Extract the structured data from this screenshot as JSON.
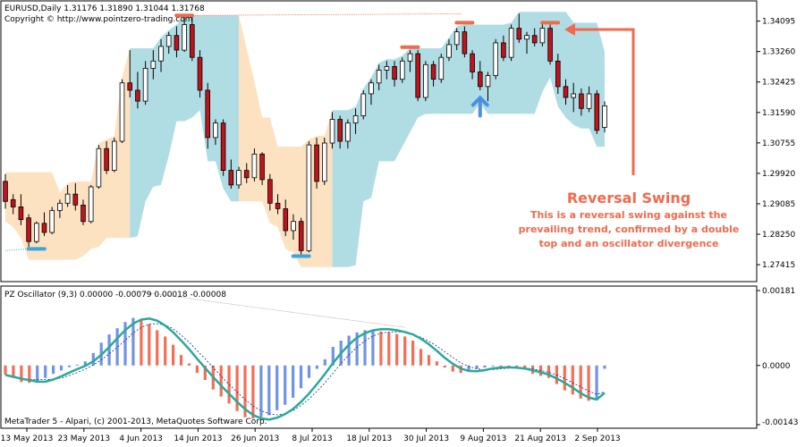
{
  "main_panel": {
    "header_line1": "EURUSD,Daily  1.31176 1.31890 1.31044 1.31768",
    "header_line2": "Copyright © http://www.pointzero-trading.com",
    "price_ticks": [
      "1.34095",
      "1.33260",
      "1.32425",
      "1.31590",
      "1.30755",
      "1.29920",
      "1.29085",
      "1.28250",
      "1.27415"
    ]
  },
  "osc_panel": {
    "header": "PZ Oscillator (9,3) 0.00000 -0.00079 0.00018 -0.00008",
    "ticks": [
      "0.00181",
      "0.0000",
      "-0.00143"
    ],
    "footer": "MetaTrader 5 - Alpari, (c) 2001-2013, MetaQuotes Software Corp."
  },
  "date_ticks": [
    "13 May 2013",
    "23 May 2013",
    "4 Jun 2013",
    "14 Jun 2013",
    "26 Jun 2013",
    "8 Jul 2013",
    "18 Jul 2013",
    "30 Jul 2013",
    "9 Aug 2013",
    "21 Aug 2013",
    "2 Sep 2013"
  ],
  "annotation": {
    "title": "Reversal Swing",
    "body_lines": [
      "This is a reversal swing against the",
      "prevailing trend, confirmed by a double",
      "top and an oscillator divergence"
    ]
  },
  "colors": {
    "bull_candle": "#ffffff",
    "bear_candle": "#c0141d",
    "cloud_bull": "#fde2c2",
    "cloud_bear": "#b0dde4",
    "swing_marker_top": "#f2694c",
    "swing_marker_bottom": "#3aa7dc",
    "arrow_up": "#4a90e2",
    "osc_positive_blue": "#6f93e6",
    "osc_negative_red": "#f46d55",
    "osc_line": "#2aa99a",
    "annotation": "#f2694c"
  },
  "chart_data": [
    {
      "type": "candlestick",
      "symbol": "EURUSD",
      "timeframe": "Daily",
      "ylim": [
        1.27,
        1.346
      ],
      "last_ohlc": {
        "open": 1.31176,
        "high": 1.3189,
        "low": 1.31044,
        "close": 1.31768
      },
      "ohlc": [
        [
          1.297,
          1.299,
          1.2895,
          1.2915
        ],
        [
          1.292,
          1.2935,
          1.288,
          1.29
        ],
        [
          1.29,
          1.2935,
          1.285,
          1.2865
        ],
        [
          1.287,
          1.288,
          1.279,
          1.2805
        ],
        [
          1.2805,
          1.286,
          1.28,
          1.2855
        ],
        [
          1.2855,
          1.2885,
          1.282,
          1.283
        ],
        [
          1.283,
          1.29,
          1.2825,
          1.289
        ],
        [
          1.289,
          1.292,
          1.287,
          1.291
        ],
        [
          1.291,
          1.296,
          1.29,
          1.2935
        ],
        [
          1.2935,
          1.2965,
          1.289,
          1.2905
        ],
        [
          1.2905,
          1.292,
          1.285,
          1.286
        ],
        [
          1.286,
          1.296,
          1.2855,
          1.2955
        ],
        [
          1.2955,
          1.307,
          1.295,
          1.306
        ],
        [
          1.306,
          1.308,
          1.299,
          1.3
        ],
        [
          1.3,
          1.309,
          1.2995,
          1.308
        ],
        [
          1.308,
          1.325,
          1.3075,
          1.324
        ],
        [
          1.324,
          1.333,
          1.32,
          1.322
        ],
        [
          1.322,
          1.327,
          1.317,
          1.319
        ],
        [
          1.319,
          1.33,
          1.318,
          1.328
        ],
        [
          1.328,
          1.333,
          1.325,
          1.33
        ],
        [
          1.33,
          1.336,
          1.327,
          1.334
        ],
        [
          1.334,
          1.338,
          1.332,
          1.337
        ],
        [
          1.337,
          1.3395,
          1.331,
          1.333
        ],
        [
          1.333,
          1.342,
          1.3325,
          1.34
        ],
        [
          1.34,
          1.342,
          1.33,
          1.331
        ],
        [
          1.331,
          1.333,
          1.32,
          1.322
        ],
        [
          1.322,
          1.324,
          1.306,
          1.309
        ],
        [
          1.309,
          1.314,
          1.307,
          1.313
        ],
        [
          1.313,
          1.314,
          1.2985,
          1.3
        ],
        [
          1.3,
          1.303,
          1.295,
          1.296
        ],
        [
          1.296,
          1.301,
          1.295,
          1.3
        ],
        [
          1.3,
          1.302,
          1.2965,
          1.298
        ],
        [
          1.298,
          1.306,
          1.297,
          1.3045
        ],
        [
          1.3045,
          1.305,
          1.296,
          1.2975
        ],
        [
          1.2975,
          1.299,
          1.289,
          1.291
        ],
        [
          1.291,
          1.2935,
          1.288,
          1.2895
        ],
        [
          1.2895,
          1.292,
          1.282,
          1.2835
        ],
        [
          1.2835,
          1.288,
          1.281,
          1.286
        ],
        [
          1.286,
          1.287,
          1.277,
          1.278
        ],
        [
          1.278,
          1.308,
          1.2775,
          1.307
        ],
        [
          1.307,
          1.309,
          1.295,
          1.297
        ],
        [
          1.297,
          1.309,
          1.296,
          1.3075
        ],
        [
          1.3075,
          1.316,
          1.306,
          1.314
        ],
        [
          1.314,
          1.315,
          1.306,
          1.308
        ],
        [
          1.308,
          1.314,
          1.306,
          1.313
        ],
        [
          1.313,
          1.317,
          1.31,
          1.315
        ],
        [
          1.315,
          1.322,
          1.314,
          1.321
        ],
        [
          1.321,
          1.325,
          1.318,
          1.324
        ],
        [
          1.324,
          1.329,
          1.322,
          1.3275
        ],
        [
          1.3275,
          1.33,
          1.325,
          1.3285
        ],
        [
          1.3285,
          1.33,
          1.323,
          1.325
        ],
        [
          1.325,
          1.331,
          1.324,
          1.33
        ],
        [
          1.33,
          1.333,
          1.327,
          1.332
        ],
        [
          1.332,
          1.333,
          1.319,
          1.32
        ],
        [
          1.32,
          1.33,
          1.319,
          1.329
        ],
        [
          1.329,
          1.33,
          1.323,
          1.325
        ],
        [
          1.325,
          1.332,
          1.324,
          1.331
        ],
        [
          1.331,
          1.336,
          1.33,
          1.3345
        ],
        [
          1.3345,
          1.339,
          1.333,
          1.338
        ],
        [
          1.338,
          1.3395,
          1.331,
          1.332
        ],
        [
          1.332,
          1.333,
          1.325,
          1.327
        ],
        [
          1.327,
          1.33,
          1.322,
          1.323
        ],
        [
          1.323,
          1.327,
          1.319,
          1.326
        ],
        [
          1.326,
          1.336,
          1.325,
          1.335
        ],
        [
          1.335,
          1.337,
          1.33,
          1.331
        ],
        [
          1.331,
          1.34,
          1.33,
          1.339
        ],
        [
          1.339,
          1.343,
          1.335,
          1.336
        ],
        [
          1.336,
          1.338,
          1.332,
          1.337
        ],
        [
          1.337,
          1.339,
          1.334,
          1.335
        ],
        [
          1.335,
          1.34,
          1.334,
          1.339
        ],
        [
          1.339,
          1.34,
          1.329,
          1.33
        ],
        [
          1.33,
          1.332,
          1.321,
          1.323
        ],
        [
          1.323,
          1.325,
          1.318,
          1.32
        ],
        [
          1.32,
          1.324,
          1.316,
          1.321
        ],
        [
          1.321,
          1.3225,
          1.315,
          1.317
        ],
        [
          1.317,
          1.323,
          1.316,
          1.321
        ],
        [
          1.321,
          1.322,
          1.31,
          1.311
        ],
        [
          1.3118,
          1.3189,
          1.3104,
          1.3177
        ]
      ],
      "cloud": {
        "bull_segments": [
          [
            0,
            16
          ],
          [
            30,
            42
          ]
        ],
        "bear_segments": [
          [
            16,
            30
          ],
          [
            42,
            78
          ]
        ]
      },
      "swing_markers": [
        {
          "kind": "bottom",
          "bar": 4,
          "price": 1.2785
        },
        {
          "kind": "top",
          "bar": 23,
          "price": 1.3425
        },
        {
          "kind": "bottom",
          "bar": 38,
          "price": 1.2765
        },
        {
          "kind": "top",
          "bar": 52,
          "price": 1.3338
        },
        {
          "kind": "top",
          "bar": 59,
          "price": 1.3405
        },
        {
          "kind": "top",
          "bar": 70,
          "price": 1.3405
        }
      ],
      "up_arrow": {
        "bar": 61,
        "price": 1.315
      }
    },
    {
      "type": "bar",
      "name": "PZ Oscillator (9,3)",
      "ylim": [
        -0.00143,
        0.00181
      ],
      "histogram": [
        -0.00022,
        -0.0003,
        -0.0004,
        -0.00042,
        -0.00038,
        -0.0003,
        -0.0002,
        -0.00012,
        -4e-05,
        2e-05,
        0.0001,
        0.0003,
        0.00055,
        0.00075,
        0.0009,
        0.00105,
        0.00115,
        0.00112,
        0.001,
        0.00085,
        0.0007,
        0.0005,
        0.00025,
        5e-05,
        -0.00018,
        -0.00035,
        -0.00058,
        -0.00075,
        -0.00092,
        -0.0011,
        -0.00125,
        -0.00128,
        -0.00125,
        -0.0012,
        -0.00108,
        -0.00095,
        -0.00078,
        -0.00055,
        -0.0003,
        -8e-05,
        0.00015,
        0.00045,
        0.0006,
        0.00072,
        0.0008,
        0.00085,
        0.00086,
        0.00082,
        0.0008,
        0.00076,
        0.0007,
        0.0006,
        0.0004,
        0.00025,
        0.0001,
        -5e-05,
        -0.00015,
        -0.00018,
        -0.00012,
        -8e-05,
        -5e-05,
        -2e-05,
        -4e-05,
        -6e-05,
        -8e-05,
        -0.0001,
        -0.0002,
        -0.00025,
        -0.0003,
        -0.00045,
        -0.0006,
        -0.0007,
        -0.0008,
        -0.00085,
        -0.00079,
        -8e-05
      ]
    }
  ]
}
